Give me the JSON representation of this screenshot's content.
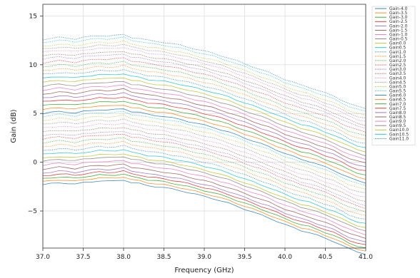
{
  "chart_data": {
    "type": "line",
    "title": "",
    "xlabel": "Frequency (GHz)",
    "ylabel": "Gain (dB)",
    "xlim": [
      37.0,
      41.0
    ],
    "ylim": [
      -8.8,
      16.2
    ],
    "xticks": [
      37.0,
      37.5,
      38.0,
      38.5,
      39.0,
      39.5,
      40.0,
      40.5,
      41.0
    ],
    "xtick_labels": [
      "37.0",
      "37.5",
      "38.0",
      "38.5",
      "39.0",
      "39.5",
      "40.0",
      "40.5",
      "41.0"
    ],
    "yticks": [
      15,
      10,
      5,
      0,
      -5
    ],
    "ytick_labels": [
      "15",
      "10",
      "5",
      "0",
      "−5"
    ],
    "grid": true,
    "legend_position": "outside-right",
    "series_shape": {
      "x": [
        37.0,
        37.1,
        37.2,
        37.3,
        37.4,
        37.5,
        37.6,
        37.7,
        37.8,
        37.9,
        38.0,
        38.1,
        38.2,
        38.3,
        38.4,
        38.5,
        38.6,
        38.7,
        38.8,
        38.9,
        39.0,
        39.1,
        39.2,
        39.3,
        39.4,
        39.5,
        39.6,
        39.7,
        39.8,
        39.9,
        40.0,
        40.1,
        40.2,
        40.3,
        40.4,
        40.5,
        40.6,
        40.7,
        40.8,
        40.9,
        41.0
      ],
      "offset_from_37GHz_dB": [
        0,
        0.1,
        0.2,
        0.15,
        0.05,
        0.2,
        0.3,
        0.4,
        0.35,
        0.4,
        0.5,
        0.2,
        0.1,
        -0.1,
        -0.2,
        -0.3,
        -0.45,
        -0.6,
        -0.8,
        -1.0,
        -1.2,
        -1.4,
        -1.65,
        -1.9,
        -2.2,
        -2.5,
        -2.8,
        -3.1,
        -3.4,
        -3.75,
        -4.1,
        -4.4,
        -4.7,
        -4.9,
        -5.2,
        -5.5,
        -5.8,
        -6.2,
        -6.6,
        -6.9,
        -7.1
      ]
    },
    "series": [
      {
        "name": "Gain-4.0",
        "start": -2.3,
        "color": "#1f77b4",
        "dash": "solid"
      },
      {
        "name": "Gain-3.5",
        "start": -2.0,
        "color": "#ff7f0e",
        "dash": "solid"
      },
      {
        "name": "Gain-3.0",
        "start": -1.7,
        "color": "#2ca02c",
        "dash": "solid"
      },
      {
        "name": "Gain-2.5",
        "start": -1.4,
        "color": "#d62728",
        "dash": "solid"
      },
      {
        "name": "Gain-2.0",
        "start": -1.1,
        "color": "#9467bd",
        "dash": "solid"
      },
      {
        "name": "Gain-1.5",
        "start": -0.7,
        "color": "#8c564b",
        "dash": "solid"
      },
      {
        "name": "Gain-1.0",
        "start": -0.3,
        "color": "#e377c2",
        "dash": "solid"
      },
      {
        "name": "Gain-0.5",
        "start": 0.1,
        "color": "#7f7f7f",
        "dash": "solid"
      },
      {
        "name": "Gain0.0",
        "start": 0.4,
        "color": "#bcbd22",
        "dash": "solid"
      },
      {
        "name": "Gain0.5",
        "start": 0.8,
        "color": "#17becf",
        "dash": "solid"
      },
      {
        "name": "Gain1.0",
        "start": 1.2,
        "color": "#1f77b4",
        "dash": "dotted"
      },
      {
        "name": "Gain1.5",
        "start": 1.6,
        "color": "#ff7f0e",
        "dash": "dotted"
      },
      {
        "name": "Gain2.0",
        "start": 2.0,
        "color": "#2ca02c",
        "dash": "dotted"
      },
      {
        "name": "Gain2.5",
        "start": 2.4,
        "color": "#d62728",
        "dash": "dotted"
      },
      {
        "name": "Gain3.0",
        "start": 2.7,
        "color": "#9467bd",
        "dash": "dotted"
      },
      {
        "name": "Gain3.5",
        "start": 3.1,
        "color": "#8c564b",
        "dash": "dotted"
      },
      {
        "name": "Gain4.0",
        "start": 3.5,
        "color": "#e377c2",
        "dash": "dotted"
      },
      {
        "name": "Gain4.5",
        "start": 3.9,
        "color": "#7f7f7f",
        "dash": "dotted"
      },
      {
        "name": "Gain5.0",
        "start": 4.3,
        "color": "#bcbd22",
        "dash": "dotted"
      },
      {
        "name": "Gain5.5",
        "start": 4.7,
        "color": "#17becf",
        "dash": "dotted"
      },
      {
        "name": "Gain6.0",
        "start": 5.0,
        "color": "#1f77b4",
        "dash": "solid"
      },
      {
        "name": "Gain6.5",
        "start": 5.4,
        "color": "#ff7f0e",
        "dash": "solid"
      },
      {
        "name": "Gain7.0",
        "start": 5.8,
        "color": "#2ca02c",
        "dash": "solid"
      },
      {
        "name": "Gain7.5",
        "start": 6.2,
        "color": "#d62728",
        "dash": "solid"
      },
      {
        "name": "Gain8.0",
        "start": 6.6,
        "color": "#9467bd",
        "dash": "solid"
      },
      {
        "name": "Gain8.5",
        "start": 7.0,
        "color": "#8c564b",
        "dash": "solid"
      },
      {
        "name": "Gain9.0",
        "start": 7.4,
        "color": "#e377c2",
        "dash": "solid"
      },
      {
        "name": "Gain9.5",
        "start": 7.8,
        "color": "#7f7f7f",
        "dash": "solid"
      },
      {
        "name": "Gain10.0",
        "start": 8.2,
        "color": "#bcbd22",
        "dash": "solid"
      },
      {
        "name": "Gain10.5",
        "start": 8.6,
        "color": "#17becf",
        "dash": "solid"
      },
      {
        "name": "Gain11.0",
        "start": 9.0,
        "color": "#1f77b4",
        "dash": "dotted"
      },
      {
        "name": "",
        "start": 9.4,
        "color": "#ff7f0e",
        "dash": "dotted"
      },
      {
        "name": "",
        "start": 9.8,
        "color": "#2ca02c",
        "dash": "dotted"
      },
      {
        "name": "",
        "start": 10.2,
        "color": "#d62728",
        "dash": "dotted"
      },
      {
        "name": "",
        "start": 10.6,
        "color": "#9467bd",
        "dash": "dotted"
      },
      {
        "name": "",
        "start": 10.9,
        "color": "#8c564b",
        "dash": "dotted"
      },
      {
        "name": "",
        "start": 11.3,
        "color": "#e377c2",
        "dash": "dotted"
      },
      {
        "name": "",
        "start": 11.6,
        "color": "#7f7f7f",
        "dash": "dotted"
      },
      {
        "name": "",
        "start": 11.9,
        "color": "#bcbd22",
        "dash": "dotted"
      },
      {
        "name": "",
        "start": 12.3,
        "color": "#17becf",
        "dash": "dotted"
      },
      {
        "name": "",
        "start": 12.6,
        "color": "#1f77b4",
        "dash": "dotted"
      }
    ]
  }
}
